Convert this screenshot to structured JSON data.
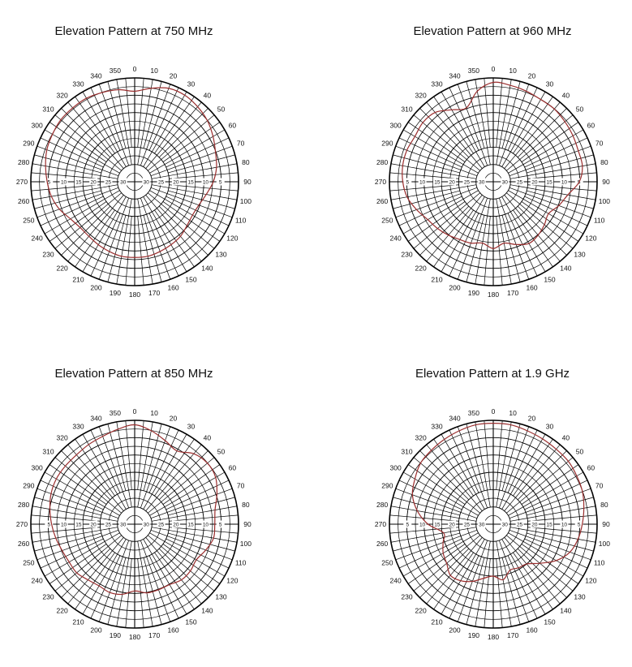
{
  "chart_data": [
    {
      "type": "polar-line",
      "title": "Elevation Pattern at 750 MHz",
      "angle_ticks": [
        0,
        10,
        20,
        30,
        40,
        50,
        60,
        70,
        80,
        90,
        100,
        110,
        120,
        130,
        140,
        150,
        160,
        170,
        180,
        190,
        200,
        210,
        220,
        230,
        240,
        250,
        260,
        270,
        280,
        290,
        300,
        310,
        320,
        330,
        340,
        350
      ],
      "radial_ticks": [
        5,
        10,
        15,
        20,
        25,
        30
      ],
      "radial_range": [
        0,
        35
      ],
      "grid": true,
      "series": [
        {
          "color": "#9b2d2d",
          "angles": [
            0,
            10,
            20,
            30,
            40,
            50,
            60,
            70,
            80,
            90,
            100,
            110,
            120,
            130,
            140,
            150,
            160,
            170,
            180,
            190,
            200,
            210,
            220,
            230,
            240,
            250,
            260,
            270,
            280,
            290,
            300,
            310,
            320,
            330,
            340,
            350
          ],
          "values": [
            4.5,
            3.0,
            1.5,
            1.3,
            2.0,
            3.0,
            4.5,
            6.0,
            7.0,
            8.5,
            10.5,
            12.0,
            12.5,
            12.0,
            11.0,
            10.5,
            10.0,
            9.5,
            9.5,
            9.5,
            10.0,
            10.5,
            11.0,
            11.0,
            10.0,
            8.0,
            6.5,
            5.5,
            4.5,
            3.5,
            3.0,
            2.5,
            2.5,
            2.5,
            3.0,
            3.5
          ]
        }
      ]
    },
    {
      "type": "polar-line",
      "title": "Elevation Pattern at 960 MHz",
      "angle_ticks": [
        0,
        10,
        20,
        30,
        40,
        50,
        60,
        70,
        80,
        90,
        100,
        110,
        120,
        130,
        140,
        150,
        160,
        170,
        180,
        190,
        200,
        210,
        220,
        230,
        240,
        250,
        260,
        270,
        280,
        290,
        300,
        310,
        320,
        330,
        340,
        350
      ],
      "radial_ticks": [
        5,
        10,
        15,
        20,
        25,
        30
      ],
      "radial_range": [
        0,
        35
      ],
      "grid": true,
      "series": [
        {
          "color": "#9b2d2d",
          "angles": [
            0,
            10,
            20,
            30,
            40,
            50,
            60,
            70,
            80,
            90,
            100,
            110,
            120,
            130,
            140,
            150,
            160,
            170,
            180,
            190,
            200,
            210,
            220,
            230,
            240,
            250,
            260,
            270,
            280,
            290,
            300,
            310,
            320,
            330,
            340,
            350
          ],
          "values": [
            1.5,
            2.0,
            2.5,
            3.0,
            3.0,
            3.5,
            4.0,
            4.5,
            4.5,
            6.0,
            9.5,
            11.5,
            13.5,
            12.5,
            11.5,
            11.0,
            12.5,
            14.0,
            12.5,
            14.0,
            13.0,
            12.5,
            11.5,
            10.5,
            9.5,
            7.5,
            5.5,
            4.5,
            4.0,
            4.0,
            4.5,
            4.0,
            4.5,
            7.0,
            8.5,
            4.0
          ]
        }
      ]
    },
    {
      "type": "polar-line",
      "title": "Elevation Pattern at 850 MHz",
      "angle_ticks": [
        0,
        10,
        20,
        30,
        40,
        50,
        60,
        70,
        80,
        90,
        100,
        110,
        120,
        130,
        140,
        150,
        160,
        170,
        180,
        190,
        200,
        210,
        220,
        230,
        240,
        250,
        260,
        270,
        280,
        290,
        300,
        310,
        320,
        330,
        340,
        350
      ],
      "radial_ticks": [
        5,
        10,
        15,
        20,
        25,
        30
      ],
      "radial_range": [
        0,
        35
      ],
      "grid": true,
      "series": [
        {
          "color": "#9b2d2d",
          "angles": [
            0,
            10,
            20,
            30,
            40,
            50,
            60,
            70,
            80,
            90,
            100,
            110,
            120,
            130,
            140,
            150,
            160,
            170,
            180,
            190,
            200,
            210,
            220,
            230,
            240,
            250,
            260,
            270,
            280,
            290,
            300,
            310,
            320,
            330,
            340,
            350
          ],
          "values": [
            1.5,
            3.0,
            5.0,
            6.5,
            4.0,
            3.0,
            3.5,
            5.5,
            7.5,
            8.0,
            8.0,
            9.5,
            11.0,
            10.5,
            10.5,
            11.5,
            11.5,
            11.5,
            12.5,
            11.0,
            10.5,
            11.0,
            10.5,
            9.5,
            9.5,
            9.0,
            8.0,
            7.0,
            6.0,
            5.0,
            4.5,
            4.5,
            4.5,
            4.0,
            3.5,
            2.5
          ]
        }
      ]
    },
    {
      "type": "polar-line",
      "title": "Elevation Pattern at 1.9 GHz",
      "angle_ticks": [
        0,
        10,
        20,
        30,
        40,
        50,
        60,
        70,
        80,
        90,
        100,
        110,
        120,
        130,
        140,
        150,
        160,
        170,
        180,
        190,
        200,
        210,
        220,
        230,
        240,
        250,
        260,
        270,
        280,
        290,
        300,
        310,
        320,
        330,
        340,
        350
      ],
      "radial_ticks": [
        5,
        10,
        15,
        20,
        25,
        30
      ],
      "radial_range": [
        0,
        35
      ],
      "grid": true,
      "series": [
        {
          "color": "#9b2d2d",
          "angles": [
            0,
            10,
            20,
            30,
            40,
            50,
            60,
            70,
            80,
            90,
            100,
            110,
            120,
            130,
            140,
            150,
            160,
            170,
            180,
            190,
            200,
            210,
            220,
            230,
            240,
            250,
            260,
            270,
            280,
            290,
            300,
            310,
            320,
            330,
            340,
            350
          ],
          "values": [
            1.0,
            1.0,
            1.5,
            1.8,
            2.0,
            2.0,
            2.5,
            3.0,
            4.0,
            5.0,
            6.0,
            7.5,
            10.5,
            14.5,
            17.5,
            18.0,
            18.5,
            16.0,
            17.5,
            16.5,
            14.5,
            13.0,
            12.5,
            14.5,
            15.5,
            17.0,
            18.0,
            13.0,
            9.0,
            6.0,
            4.5,
            3.0,
            2.5,
            2.0,
            1.5,
            1.0
          ]
        }
      ]
    }
  ]
}
